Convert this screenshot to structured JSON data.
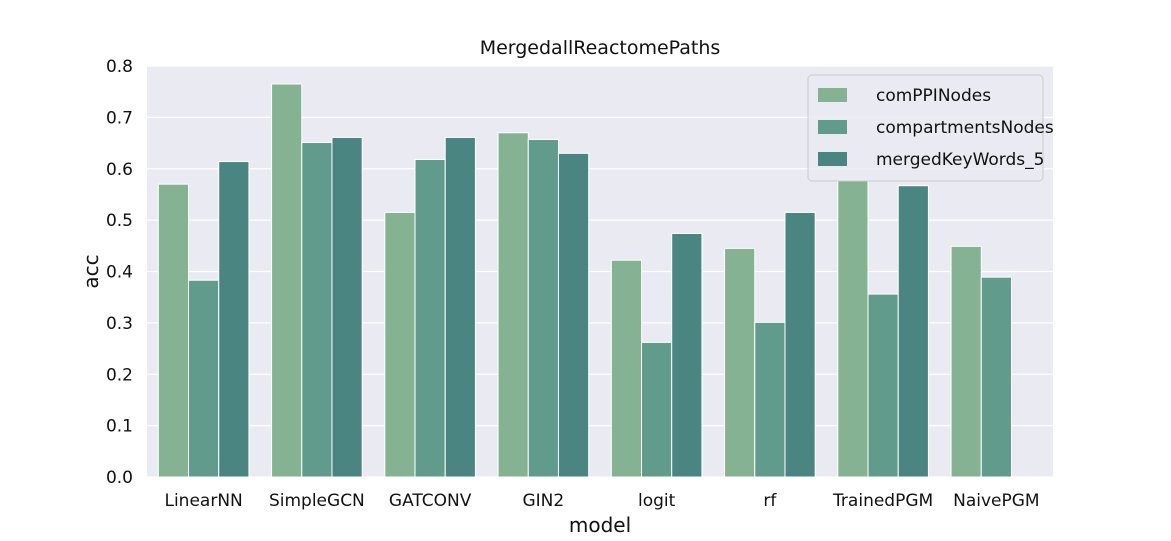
{
  "chart_data": {
    "type": "bar",
    "title": "MergedallReactomePaths",
    "xlabel": "model",
    "ylabel": "acc",
    "ylim": [
      0,
      0.8
    ],
    "yticks": [
      "0.0",
      "0.1",
      "0.2",
      "0.3",
      "0.4",
      "0.5",
      "0.6",
      "0.7",
      "0.8"
    ],
    "categories": [
      "LinearNN",
      "SimpleGCN",
      "GATCONV",
      "GIN2",
      "logit",
      "rf",
      "TrainedPGM",
      "NaivePGM"
    ],
    "series": [
      {
        "name": "comPPINodes",
        "color": "#84b292",
        "values": [
          0.57,
          0.765,
          0.515,
          0.67,
          0.422,
          0.445,
          0.578,
          0.449
        ]
      },
      {
        "name": "compartmentsNodes",
        "color": "#609b8b",
        "values": [
          0.383,
          0.651,
          0.618,
          0.657,
          0.262,
          0.301,
          0.356,
          0.389
        ]
      },
      {
        "name": "mergedKeyWords_5",
        "color": "#4a8582",
        "values": [
          0.614,
          0.661,
          0.661,
          0.63,
          0.474,
          0.515,
          0.567,
          null
        ]
      }
    ],
    "grid": true,
    "legend_position": "top-right",
    "background_color": "#eaeaf2"
  }
}
